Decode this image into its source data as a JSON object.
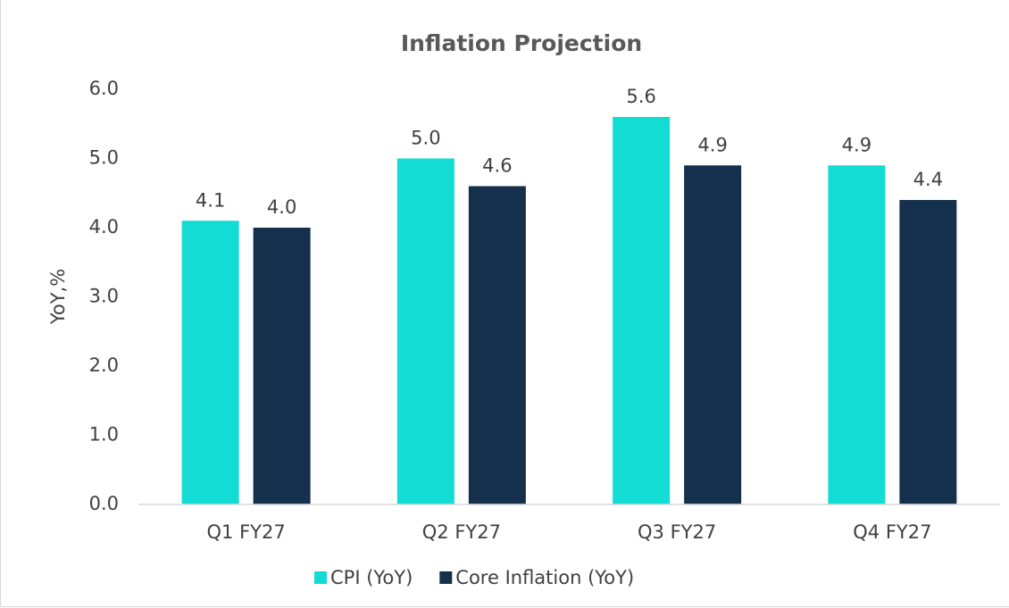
{
  "chart_data": {
    "type": "bar",
    "title": "Inflation Projection",
    "y_label": "YoY,%",
    "categories": [
      "Q1 FY27",
      "Q2 FY27",
      "Q3 FY27",
      "Q4 FY27"
    ],
    "series": [
      {
        "name": "CPI (YoY)",
        "color": "#12dcd3",
        "values": [
          4.1,
          5.0,
          5.6,
          4.9
        ],
        "value_labels": [
          "4.1",
          "5.0",
          "5.6",
          "4.9"
        ]
      },
      {
        "name": "Core Inflation (YoY)",
        "color": "#15304d",
        "values": [
          4.0,
          4.6,
          4.9,
          4.4
        ],
        "value_labels": [
          "4.0",
          "4.6",
          "4.9",
          "4.4"
        ]
      }
    ],
    "ylim": [
      0,
      6
    ],
    "yticks": [
      {
        "value": 0,
        "label": "0.0"
      },
      {
        "value": 1,
        "label": "1.0"
      },
      {
        "value": 2,
        "label": "2.0"
      },
      {
        "value": 3,
        "label": "3.0"
      },
      {
        "value": 4,
        "label": "4.0"
      },
      {
        "value": 5,
        "label": "5.0"
      },
      {
        "value": 6,
        "label": "6.0"
      }
    ],
    "grid": false,
    "legend": "bottom"
  }
}
